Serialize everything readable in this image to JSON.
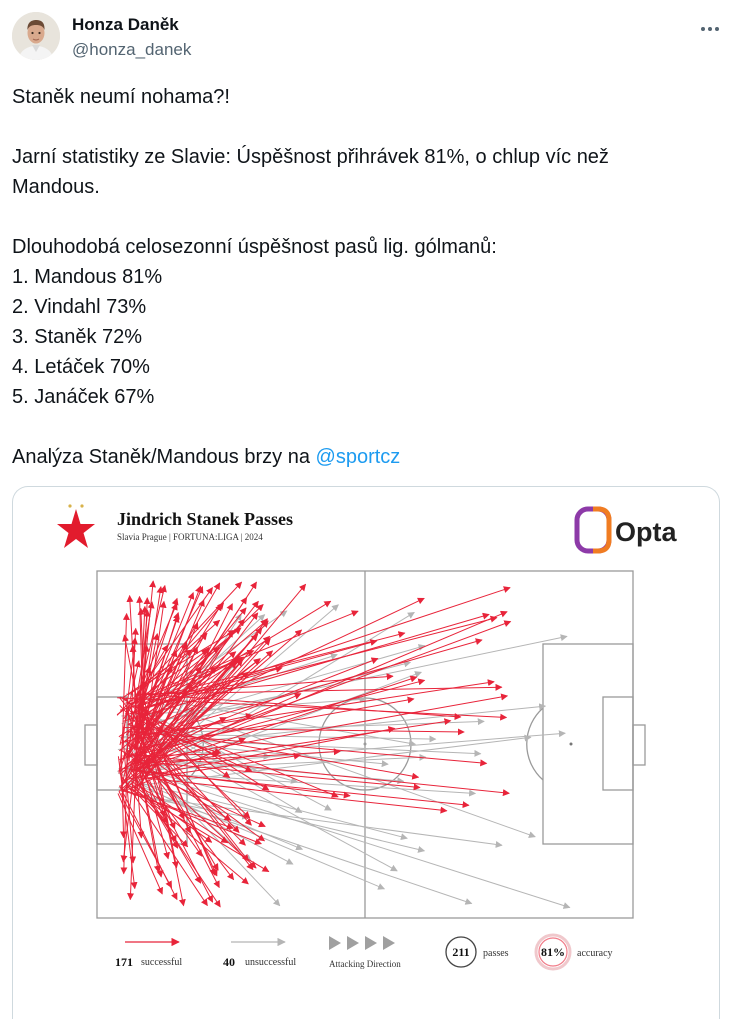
{
  "author": {
    "name": "Honza Daněk",
    "handle": "@honza_danek"
  },
  "icons": {
    "more": "more-dots-icon",
    "club_crest": "slavia-star-icon"
  },
  "tweet": {
    "lines": [
      "Staněk neumí nohama?!",
      "",
      "Jarní statistiky ze Slavie: Úspěšnost přihrávek 81%, o chlup víc než",
      "Mandous.",
      "",
      "Dlouhodobá celosezonní úspěšnost pasů lig. gólmanů:",
      "1. Mandous 81%",
      "2. Vindahl 73%",
      "3. Staněk 72%",
      "4. Letáček 70%",
      "5. Janáček 67%",
      ""
    ],
    "last_line_prefix": "Analýza Staněk/Mandous brzy na ",
    "mention": "@sportcz"
  },
  "graphic": {
    "title": "Jindrich Stanek Passes",
    "subtitle": "Slavia Prague | FORTUNA:LIGA | 2024",
    "brand": "Opta",
    "successful_count": "171",
    "successful_label": "successful",
    "unsuccessful_count": "40",
    "unsuccessful_label": "unsuccessful",
    "direction_label": "Attacking Direction",
    "passes_count": "211",
    "passes_label": "passes",
    "accuracy_value": "81%",
    "accuracy_label": "accuracy",
    "colors": {
      "successful": "#e8243a",
      "unsuccessful": "#b5b5b5",
      "pitch_lines": "#9a9a9a",
      "crest": "#e21b2d",
      "opta_orange": "#f07c22",
      "opta_purple": "#8d3aa8"
    }
  }
}
